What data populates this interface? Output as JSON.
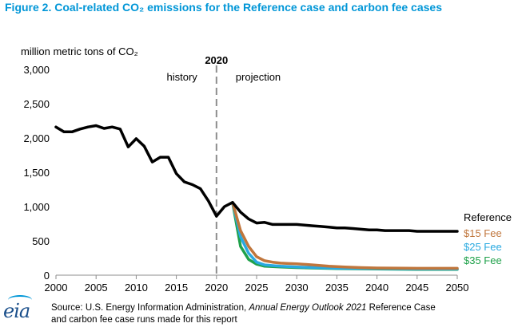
{
  "title": "Figure 2. Coal-related CO₂ emissions for the Reference case and carbon fee cases",
  "source": {
    "prefix": "Source: U.S. Energy Information Administration, ",
    "italic": "Annual Energy Outlook 2021",
    "suffix": " Reference Case",
    "line2": "and carbon fee case runs made for this report"
  },
  "logo_text": "eia",
  "chart_data": {
    "type": "line",
    "ylabel": "million metric tons of CO₂",
    "xlim": [
      2000,
      2050
    ],
    "ylim": [
      0,
      3000
    ],
    "x_ticks": [
      2000,
      2005,
      2010,
      2015,
      2020,
      2025,
      2030,
      2035,
      2040,
      2045,
      2050
    ],
    "y_ticks": [
      0,
      500,
      1000,
      1500,
      2000,
      2500,
      3000
    ],
    "y_tick_labels": [
      "0",
      "500",
      "1,000",
      "1,500",
      "2,000",
      "2,500",
      "3,000"
    ],
    "divider": {
      "x": 2020,
      "label": "2020",
      "left_label": "history",
      "right_label": "projection"
    },
    "grid": false,
    "legend": "right, labels at line ends",
    "series": [
      {
        "name": "Reference",
        "color": "#000000",
        "x": [
          2000,
          2001,
          2002,
          2003,
          2004,
          2005,
          2006,
          2007,
          2008,
          2009,
          2010,
          2011,
          2012,
          2013,
          2014,
          2015,
          2016,
          2017,
          2018,
          2019,
          2020,
          2021,
          2022,
          2023,
          2024,
          2025,
          2026,
          2027,
          2028,
          2029,
          2030,
          2031,
          2032,
          2033,
          2034,
          2035,
          2036,
          2037,
          2038,
          2039,
          2040,
          2041,
          2042,
          2043,
          2044,
          2045,
          2046,
          2047,
          2048,
          2049,
          2050
        ],
        "values": [
          2160,
          2090,
          2090,
          2130,
          2160,
          2180,
          2140,
          2160,
          2130,
          1870,
          1990,
          1880,
          1650,
          1720,
          1720,
          1480,
          1360,
          1320,
          1260,
          1080,
          860,
          1000,
          1060,
          920,
          820,
          760,
          770,
          740,
          740,
          740,
          740,
          730,
          720,
          710,
          700,
          690,
          690,
          680,
          670,
          660,
          660,
          650,
          650,
          650,
          650,
          640,
          640,
          640,
          640,
          640,
          640
        ]
      },
      {
        "name": "$15 Fee",
        "color": "#c0763c",
        "x": [
          2022,
          2023,
          2024,
          2025,
          2026,
          2027,
          2028,
          2029,
          2030,
          2032,
          2034,
          2036,
          2038,
          2040,
          2045,
          2050
        ],
        "values": [
          1060,
          650,
          420,
          270,
          210,
          190,
          175,
          170,
          165,
          150,
          130,
          120,
          110,
          105,
          100,
          100
        ]
      },
      {
        "name": "$25 Fee",
        "color": "#29a9e0",
        "x": [
          2022,
          2023,
          2024,
          2025,
          2026,
          2027,
          2028,
          2030,
          2035,
          2040,
          2045,
          2050
        ],
        "values": [
          1060,
          560,
          320,
          190,
          150,
          140,
          130,
          120,
          100,
          95,
          90,
          90
        ]
      },
      {
        "name": "$35 Fee",
        "color": "#1fa14a",
        "x": [
          2022,
          2023,
          2024,
          2025,
          2026,
          2027,
          2028,
          2030,
          2035,
          2040,
          2045,
          2050
        ],
        "values": [
          1060,
          420,
          230,
          160,
          130,
          125,
          120,
          110,
          95,
          90,
          85,
          85
        ]
      }
    ]
  }
}
